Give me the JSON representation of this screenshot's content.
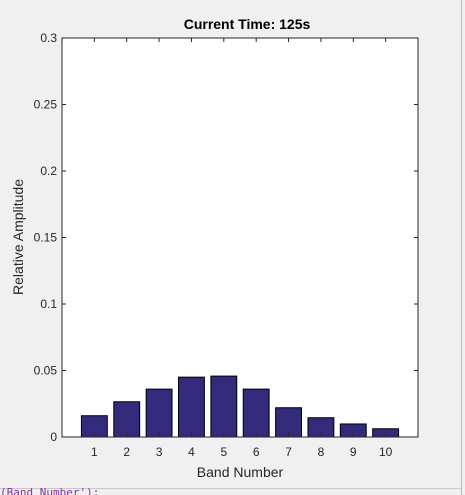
{
  "chart_data": {
    "type": "bar",
    "title": "Current Time: 125s",
    "xlabel": "Band Number",
    "ylabel": "Relative Amplitude",
    "categories": [
      "1",
      "2",
      "3",
      "4",
      "5",
      "6",
      "7",
      "8",
      "9",
      "10"
    ],
    "values": [
      0.016,
      0.0265,
      0.036,
      0.045,
      0.0458,
      0.036,
      0.022,
      0.0145,
      0.0098,
      0.0062
    ],
    "ylim": [
      0,
      0.3
    ],
    "yticks": [
      0,
      0.05,
      0.1,
      0.15,
      0.2,
      0.25,
      0.3
    ],
    "ytick_labels": [
      "0",
      "0.05",
      "0.1",
      "0.15",
      "0.2",
      "0.25",
      "0.3"
    ],
    "grid": false,
    "bar_color": "#322b7b",
    "legend": "none"
  },
  "editor": {
    "partial_text": "(Band Number');"
  }
}
